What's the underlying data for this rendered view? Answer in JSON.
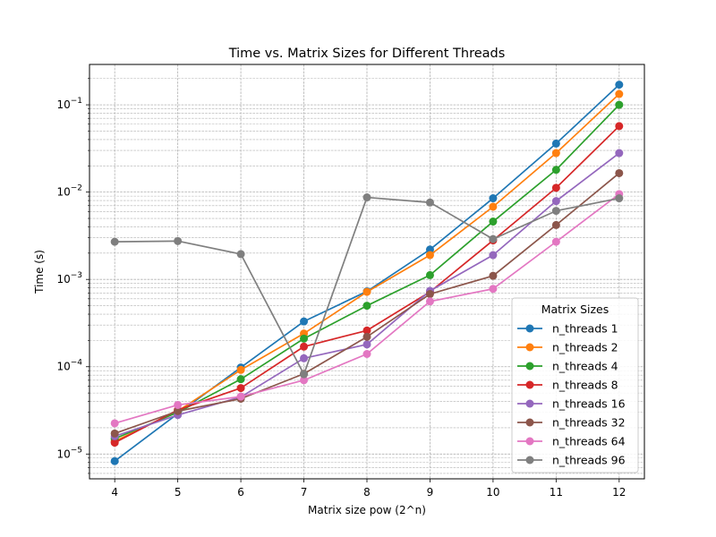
{
  "chart_data": {
    "type": "line",
    "title": "Time vs. Matrix Sizes for Different Threads",
    "xlabel": "Matrix size pow (2^n)",
    "ylabel": "Time (s)",
    "x": [
      4,
      5,
      6,
      7,
      8,
      9,
      10,
      11,
      12
    ],
    "xlim": [
      3.6,
      12.4
    ],
    "ylim": [
      5.2e-06,
      0.29
    ],
    "yscale": "log",
    "x_ticks": [
      "4",
      "5",
      "6",
      "7",
      "8",
      "9",
      "10",
      "11",
      "12"
    ],
    "y_ticks": [
      {
        "value": 1e-05,
        "base": "10",
        "exp": "−5"
      },
      {
        "value": 0.0001,
        "base": "10",
        "exp": "−4"
      },
      {
        "value": 0.001,
        "base": "10",
        "exp": "−3"
      },
      {
        "value": 0.01,
        "base": "10",
        "exp": "−2"
      },
      {
        "value": 0.1,
        "base": "10",
        "exp": "−1"
      }
    ],
    "grid": true,
    "legend": {
      "title": "Matrix Sizes",
      "position": "lower-right"
    },
    "series": [
      {
        "name": "n_threads 1",
        "color": "#1f77b4",
        "values": [
          8.3e-06,
          2.9e-05,
          9.8e-05,
          0.00033,
          0.00073,
          0.0022,
          0.0085,
          0.036,
          0.17
        ]
      },
      {
        "name": "n_threads 2",
        "color": "#ff7f0e",
        "values": [
          1.4e-05,
          3.1e-05,
          9.2e-05,
          0.00024,
          0.00072,
          0.0019,
          0.0068,
          0.028,
          0.133
        ]
      },
      {
        "name": "n_threads 4",
        "color": "#2ca02c",
        "values": [
          1.5e-05,
          3e-05,
          7.2e-05,
          0.00021,
          0.0005,
          0.00112,
          0.0046,
          0.018,
          0.1
        ]
      },
      {
        "name": "n_threads 8",
        "color": "#d62728",
        "values": [
          1.35e-05,
          3.2e-05,
          5.7e-05,
          0.00017,
          0.00026,
          0.00072,
          0.0028,
          0.0112,
          0.057
        ]
      },
      {
        "name": "n_threads 16",
        "color": "#9467bd",
        "values": [
          1.6e-05,
          2.8e-05,
          4.5e-05,
          0.000125,
          0.00018,
          0.00074,
          0.0019,
          0.0079,
          0.028
        ]
      },
      {
        "name": "n_threads 32",
        "color": "#8c564b",
        "values": [
          1.72e-05,
          3.1e-05,
          4.3e-05,
          8.3e-05,
          0.00022,
          0.00068,
          0.0011,
          0.0042,
          0.0165
        ]
      },
      {
        "name": "n_threads 64",
        "color": "#e377c2",
        "values": [
          2.25e-05,
          3.65e-05,
          4.55e-05,
          7e-05,
          0.00014,
          0.00056,
          0.00078,
          0.0027,
          0.0095
        ]
      },
      {
        "name": "n_threads 96",
        "color": "#7f7f7f",
        "values": [
          0.0027,
          0.00275,
          0.00195,
          8.2e-05,
          0.0087,
          0.0076,
          0.0029,
          0.0061,
          0.0085
        ]
      }
    ]
  }
}
